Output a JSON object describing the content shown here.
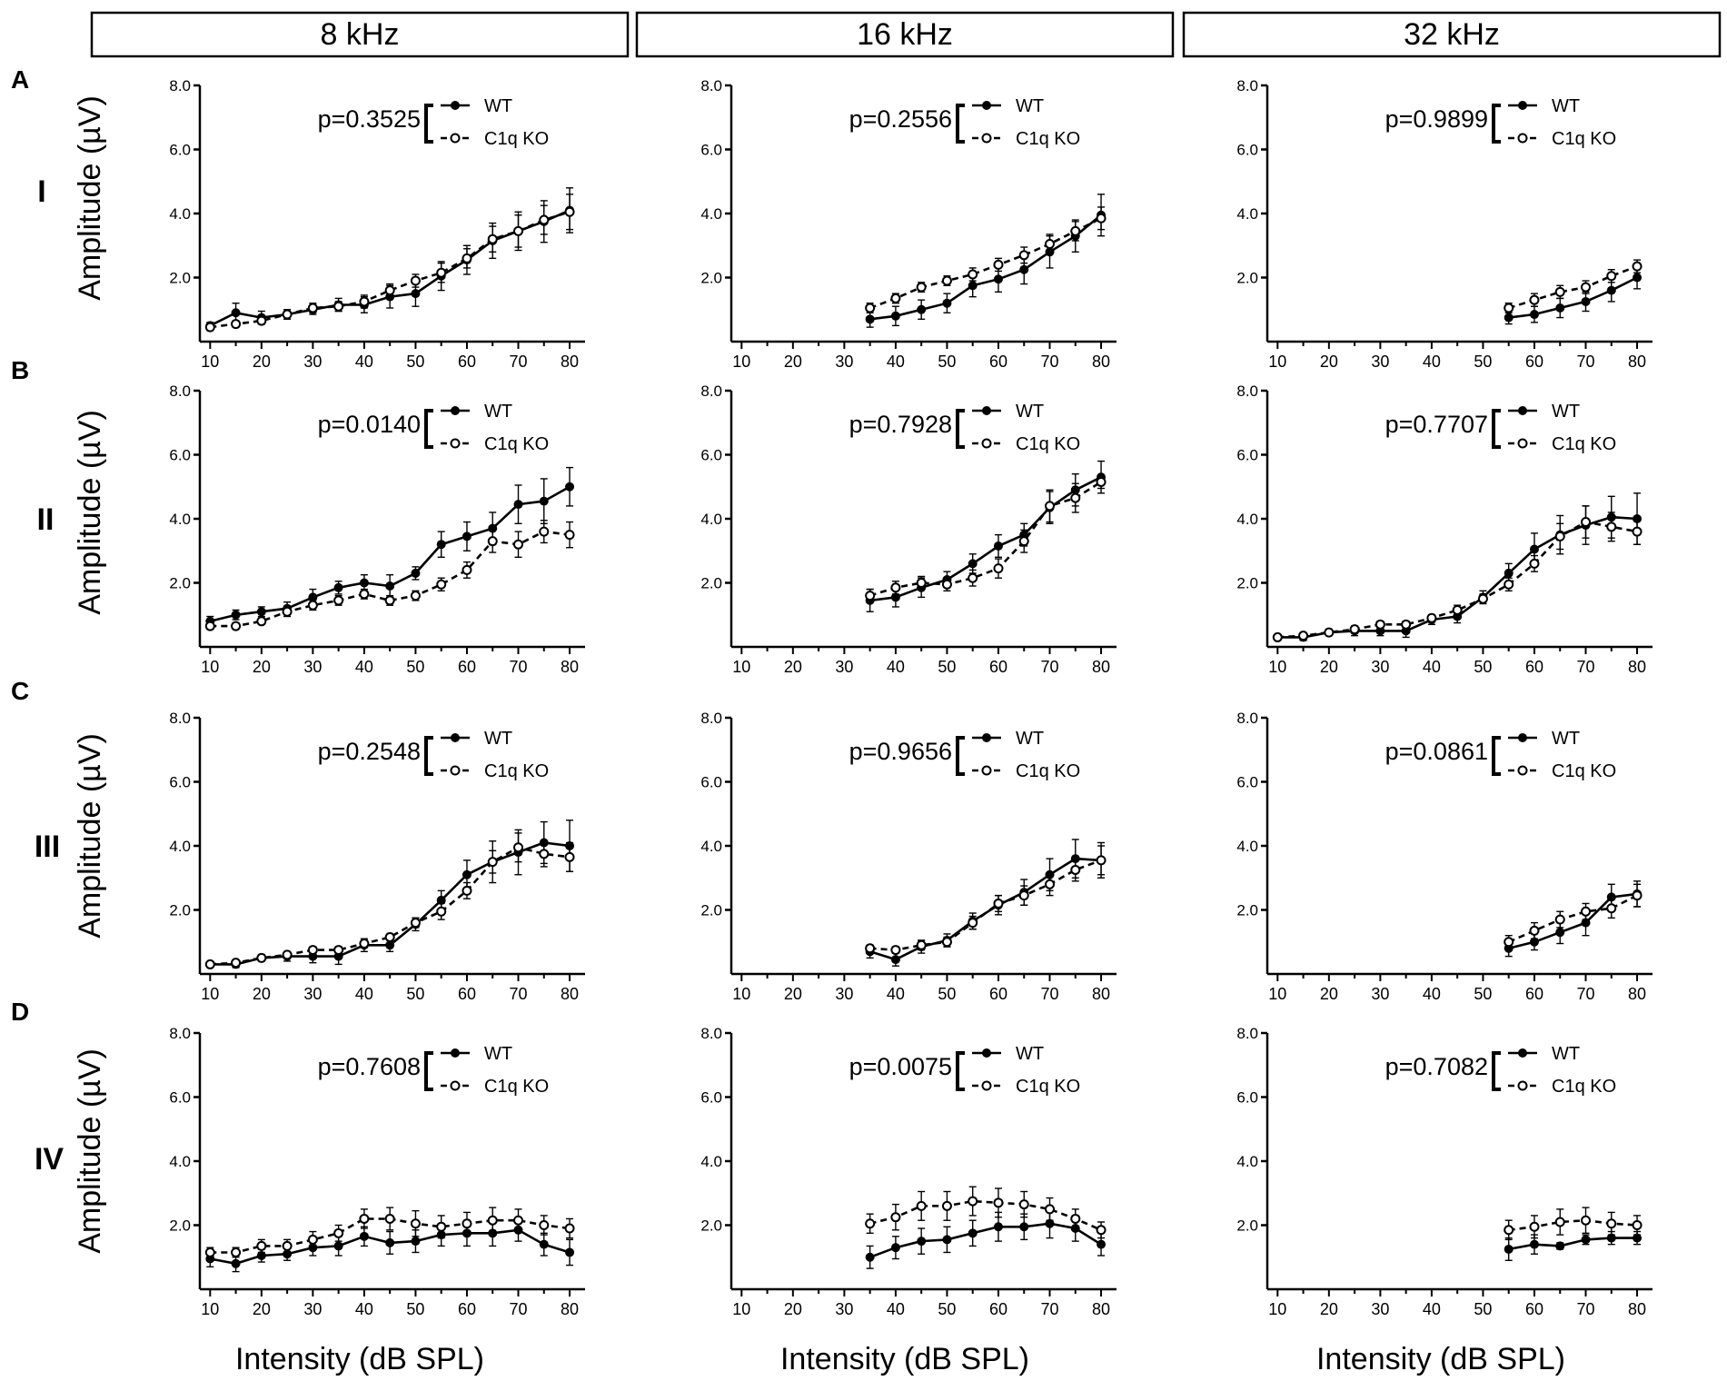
{
  "frequency_headers": [
    "8 kHz",
    "16 kHz",
    "32 kHz"
  ],
  "panel_letters": [
    "A",
    "B",
    "C",
    "D"
  ],
  "wave_labels": [
    "I",
    "II",
    "III",
    "IV"
  ],
  "y_axis_label": "Amplitude (µV)",
  "x_axis_label": "Intensity (dB SPL)",
  "legend": {
    "wt": "WT",
    "ko": "C1q KO"
  },
  "colors": {
    "line": "#000000",
    "open_marker_fill": "#ffffff"
  },
  "chart_data": [
    {
      "type": "line",
      "panel": "A",
      "wave": "I",
      "frequency": "8 kHz",
      "p_value": "p=0.3525",
      "xlim": [
        8,
        83
      ],
      "ylim": [
        0,
        8
      ],
      "xticks": [
        10,
        20,
        30,
        40,
        50,
        60,
        70,
        80
      ],
      "yticks": [
        "2.0",
        "4.0",
        "6.0",
        "8.0"
      ],
      "x": [
        10,
        15,
        20,
        25,
        30,
        35,
        40,
        45,
        50,
        55,
        60,
        65,
        70,
        75,
        80
      ],
      "series": [
        {
          "name": "WT",
          "values": [
            0.5,
            0.9,
            0.75,
            0.85,
            1.0,
            1.15,
            1.15,
            1.4,
            1.5,
            2.05,
            2.55,
            3.15,
            3.45,
            3.75,
            4.1
          ],
          "errors": [
            0.1,
            0.3,
            0.2,
            0.15,
            0.15,
            0.2,
            0.25,
            0.35,
            0.4,
            0.45,
            0.45,
            0.55,
            0.6,
            0.65,
            0.7
          ]
        },
        {
          "name": "C1q KO",
          "values": [
            0.45,
            0.55,
            0.65,
            0.85,
            1.05,
            1.1,
            1.25,
            1.6,
            1.9,
            2.15,
            2.6,
            3.2,
            3.45,
            3.8,
            4.05
          ],
          "errors": [
            0.1,
            0.1,
            0.1,
            0.1,
            0.15,
            0.15,
            0.2,
            0.2,
            0.2,
            0.3,
            0.3,
            0.4,
            0.5,
            0.45,
            0.55
          ]
        }
      ]
    },
    {
      "type": "line",
      "panel": "A",
      "wave": "I",
      "frequency": "16 kHz",
      "p_value": "p=0.2556",
      "xlim": [
        8,
        83
      ],
      "ylim": [
        0,
        8
      ],
      "xticks": [
        10,
        20,
        30,
        40,
        50,
        60,
        70,
        80
      ],
      "yticks": [
        "2.0",
        "4.0",
        "6.0",
        "8.0"
      ],
      "x": [
        35,
        40,
        45,
        50,
        55,
        60,
        65,
        70,
        75,
        80
      ],
      "series": [
        {
          "name": "WT",
          "values": [
            0.7,
            0.8,
            1.0,
            1.2,
            1.75,
            1.95,
            2.25,
            2.8,
            3.3,
            3.95
          ],
          "errors": [
            0.25,
            0.3,
            0.3,
            0.3,
            0.35,
            0.4,
            0.45,
            0.5,
            0.5,
            0.65
          ]
        },
        {
          "name": "C1q KO",
          "values": [
            1.05,
            1.35,
            1.7,
            1.9,
            2.1,
            2.4,
            2.7,
            3.05,
            3.45,
            3.85
          ],
          "errors": [
            0.15,
            0.15,
            0.15,
            0.15,
            0.2,
            0.2,
            0.25,
            0.3,
            0.3,
            0.35
          ]
        }
      ]
    },
    {
      "type": "line",
      "panel": "A",
      "wave": "I",
      "frequency": "32 kHz",
      "p_value": "p=0.9899",
      "xlim": [
        8,
        83
      ],
      "ylim": [
        0,
        8
      ],
      "xticks": [
        10,
        20,
        30,
        40,
        50,
        60,
        70,
        80
      ],
      "yticks": [
        "2.0",
        "4.0",
        "6.0",
        "8.0"
      ],
      "x": [
        55,
        60,
        65,
        70,
        75,
        80
      ],
      "series": [
        {
          "name": "WT",
          "values": [
            0.75,
            0.85,
            1.05,
            1.25,
            1.6,
            2.0
          ],
          "errors": [
            0.2,
            0.25,
            0.3,
            0.3,
            0.35,
            0.35
          ]
        },
        {
          "name": "C1q KO",
          "values": [
            1.05,
            1.3,
            1.55,
            1.7,
            2.05,
            2.35
          ],
          "errors": [
            0.15,
            0.2,
            0.2,
            0.2,
            0.2,
            0.2
          ]
        }
      ]
    },
    {
      "type": "line",
      "panel": "B",
      "wave": "II",
      "frequency": "8 kHz",
      "p_value": "p=0.0140",
      "xlim": [
        8,
        83
      ],
      "ylim": [
        0,
        8
      ],
      "xticks": [
        10,
        20,
        30,
        40,
        50,
        60,
        70,
        80
      ],
      "yticks": [
        "2.0",
        "4.0",
        "6.0",
        "8.0"
      ],
      "x": [
        10,
        15,
        20,
        25,
        30,
        35,
        40,
        45,
        50,
        55,
        60,
        65,
        70,
        75,
        80
      ],
      "series": [
        {
          "name": "WT",
          "values": [
            0.8,
            1.0,
            1.1,
            1.2,
            1.55,
            1.85,
            2.0,
            1.9,
            2.3,
            3.2,
            3.45,
            3.7,
            4.45,
            4.55,
            5.0
          ],
          "errors": [
            0.15,
            0.15,
            0.15,
            0.2,
            0.25,
            0.2,
            0.25,
            0.35,
            0.2,
            0.4,
            0.45,
            0.5,
            0.6,
            0.7,
            0.6
          ]
        },
        {
          "name": "C1q KO",
          "values": [
            0.65,
            0.65,
            0.8,
            1.1,
            1.3,
            1.45,
            1.65,
            1.45,
            1.6,
            1.95,
            2.4,
            3.3,
            3.2,
            3.6,
            3.5
          ],
          "errors": [
            0.1,
            0.1,
            0.1,
            0.15,
            0.15,
            0.15,
            0.15,
            0.15,
            0.15,
            0.2,
            0.25,
            0.35,
            0.4,
            0.35,
            0.4
          ]
        }
      ]
    },
    {
      "type": "line",
      "panel": "B",
      "wave": "II",
      "frequency": "16 kHz",
      "p_value": "p=0.7928",
      "xlim": [
        8,
        83
      ],
      "ylim": [
        0,
        8
      ],
      "xticks": [
        10,
        20,
        30,
        40,
        50,
        60,
        70,
        80
      ],
      "yticks": [
        "2.0",
        "4.0",
        "6.0",
        "8.0"
      ],
      "x": [
        35,
        40,
        45,
        50,
        55,
        60,
        65,
        70,
        75,
        80
      ],
      "series": [
        {
          "name": "WT",
          "values": [
            1.45,
            1.55,
            1.85,
            2.1,
            2.6,
            3.15,
            3.5,
            4.35,
            4.9,
            5.3
          ],
          "errors": [
            0.35,
            0.3,
            0.3,
            0.25,
            0.3,
            0.35,
            0.35,
            0.5,
            0.5,
            0.5
          ]
        },
        {
          "name": "C1q KO",
          "values": [
            1.6,
            1.85,
            2.0,
            1.95,
            2.15,
            2.45,
            3.3,
            4.4,
            4.65,
            5.15
          ],
          "errors": [
            0.2,
            0.2,
            0.2,
            0.2,
            0.25,
            0.3,
            0.35,
            0.5,
            0.45,
            0.2
          ]
        }
      ]
    },
    {
      "type": "line",
      "panel": "B",
      "wave": "II",
      "frequency": "32 kHz",
      "p_value": "p=0.7707",
      "xlim": [
        8,
        83
      ],
      "ylim": [
        0,
        8
      ],
      "xticks": [
        10,
        20,
        30,
        40,
        50,
        60,
        70,
        80
      ],
      "yticks": [
        "2.0",
        "4.0",
        "6.0",
        "8.0"
      ],
      "x": [
        10,
        15,
        20,
        25,
        30,
        35,
        40,
        45,
        50,
        55,
        60,
        65,
        70,
        75,
        80
      ],
      "series": [
        {
          "name": "WT",
          "values": [
            0.3,
            0.3,
            0.45,
            0.5,
            0.5,
            0.5,
            0.85,
            0.95,
            1.55,
            2.3,
            3.05,
            3.5,
            3.8,
            4.05,
            4.0
          ],
          "errors": [
            0.05,
            0.1,
            0.1,
            0.15,
            0.15,
            0.2,
            0.15,
            0.2,
            0.2,
            0.3,
            0.5,
            0.6,
            0.6,
            0.65,
            0.8
          ]
        },
        {
          "name": "C1q KO",
          "values": [
            0.3,
            0.35,
            0.45,
            0.55,
            0.7,
            0.7,
            0.9,
            1.15,
            1.5,
            1.95,
            2.6,
            3.45,
            3.9,
            3.75,
            3.6
          ],
          "errors": [
            0.05,
            0.05,
            0.05,
            0.1,
            0.1,
            0.1,
            0.1,
            0.15,
            0.15,
            0.2,
            0.25,
            0.4,
            0.5,
            0.45,
            0.4
          ]
        }
      ]
    },
    {
      "type": "line",
      "panel": "C",
      "wave": "III",
      "frequency": "8 kHz",
      "p_value": "p=0.2548",
      "xlim": [
        8,
        83
      ],
      "ylim": [
        0,
        8
      ],
      "xticks": [
        10,
        20,
        30,
        40,
        50,
        60,
        70,
        80
      ],
      "yticks": [
        "2.0",
        "4.0",
        "6.0",
        "8.0"
      ],
      "x": [
        10,
        15,
        20,
        25,
        30,
        35,
        40,
        45,
        50,
        55,
        60,
        65,
        70,
        75,
        80
      ],
      "series": [
        {
          "name": "WT",
          "values": [
            0.3,
            0.3,
            0.5,
            0.55,
            0.55,
            0.55,
            0.9,
            0.9,
            1.55,
            2.3,
            3.1,
            3.5,
            3.8,
            4.1,
            4.0
          ],
          "errors": [
            0.05,
            0.1,
            0.1,
            0.15,
            0.2,
            0.25,
            0.2,
            0.2,
            0.2,
            0.3,
            0.45,
            0.65,
            0.7,
            0.65,
            0.8
          ]
        },
        {
          "name": "C1q KO",
          "values": [
            0.3,
            0.35,
            0.5,
            0.6,
            0.75,
            0.75,
            0.95,
            1.15,
            1.6,
            1.95,
            2.6,
            3.5,
            3.95,
            3.75,
            3.65
          ],
          "errors": [
            0.05,
            0.05,
            0.05,
            0.1,
            0.1,
            0.1,
            0.1,
            0.1,
            0.15,
            0.25,
            0.25,
            0.35,
            0.45,
            0.4,
            0.45
          ]
        }
      ]
    },
    {
      "type": "line",
      "panel": "C",
      "wave": "III",
      "frequency": "16 kHz",
      "p_value": "p=0.9656",
      "xlim": [
        8,
        83
      ],
      "ylim": [
        0,
        8
      ],
      "xticks": [
        10,
        20,
        30,
        40,
        50,
        60,
        70,
        80
      ],
      "yticks": [
        "2.0",
        "4.0",
        "6.0",
        "8.0"
      ],
      "x": [
        35,
        40,
        45,
        50,
        55,
        60,
        65,
        70,
        75,
        80
      ],
      "series": [
        {
          "name": "WT",
          "values": [
            0.7,
            0.45,
            0.85,
            1.05,
            1.65,
            2.15,
            2.55,
            3.1,
            3.6,
            3.55
          ],
          "errors": [
            0.2,
            0.2,
            0.2,
            0.2,
            0.25,
            0.3,
            0.4,
            0.5,
            0.6,
            0.55
          ]
        },
        {
          "name": "C1q KO",
          "values": [
            0.8,
            0.75,
            0.9,
            1.0,
            1.6,
            2.2,
            2.45,
            2.8,
            3.25,
            3.55
          ],
          "errors": [
            0.1,
            0.1,
            0.15,
            0.15,
            0.2,
            0.25,
            0.3,
            0.35,
            0.35,
            0.45
          ]
        }
      ]
    },
    {
      "type": "line",
      "panel": "C",
      "wave": "III",
      "frequency": "32 kHz",
      "p_value": "p=0.0861",
      "xlim": [
        8,
        83
      ],
      "ylim": [
        0,
        8
      ],
      "xticks": [
        10,
        20,
        30,
        40,
        50,
        60,
        70,
        80
      ],
      "yticks": [
        "2.0",
        "4.0",
        "6.0",
        "8.0"
      ],
      "x": [
        55,
        60,
        65,
        70,
        75,
        80
      ],
      "series": [
        {
          "name": "WT",
          "values": [
            0.8,
            1.0,
            1.3,
            1.6,
            2.4,
            2.5
          ],
          "errors": [
            0.25,
            0.25,
            0.35,
            0.4,
            0.4,
            0.4
          ]
        },
        {
          "name": "C1q KO",
          "values": [
            1.0,
            1.35,
            1.7,
            1.95,
            2.05,
            2.45
          ],
          "errors": [
            0.2,
            0.25,
            0.25,
            0.25,
            0.3,
            0.35
          ]
        }
      ]
    },
    {
      "type": "line",
      "panel": "D",
      "wave": "IV",
      "frequency": "8 kHz",
      "p_value": "p=0.7608",
      "xlim": [
        8,
        83
      ],
      "ylim": [
        0,
        8
      ],
      "xticks": [
        10,
        20,
        30,
        40,
        50,
        60,
        70,
        80
      ],
      "yticks": [
        "2.0",
        "4.0",
        "6.0",
        "8.0"
      ],
      "x": [
        10,
        15,
        20,
        25,
        30,
        35,
        40,
        45,
        50,
        55,
        60,
        65,
        70,
        75,
        80
      ],
      "series": [
        {
          "name": "WT",
          "values": [
            0.95,
            0.8,
            1.05,
            1.1,
            1.3,
            1.35,
            1.65,
            1.45,
            1.5,
            1.7,
            1.75,
            1.75,
            1.85,
            1.4,
            1.15
          ],
          "errors": [
            0.25,
            0.25,
            0.2,
            0.2,
            0.25,
            0.3,
            0.3,
            0.35,
            0.35,
            0.35,
            0.4,
            0.4,
            0.35,
            0.35,
            0.4
          ]
        },
        {
          "name": "C1q KO",
          "values": [
            1.15,
            1.15,
            1.35,
            1.35,
            1.55,
            1.75,
            2.2,
            2.2,
            2.05,
            1.95,
            2.05,
            2.15,
            2.15,
            2.0,
            1.9
          ],
          "errors": [
            0.15,
            0.15,
            0.2,
            0.2,
            0.25,
            0.25,
            0.3,
            0.35,
            0.4,
            0.35,
            0.35,
            0.4,
            0.35,
            0.3,
            0.3
          ]
        }
      ]
    },
    {
      "type": "line",
      "panel": "D",
      "wave": "IV",
      "frequency": "16 kHz",
      "p_value": "p=0.0075",
      "xlim": [
        8,
        83
      ],
      "ylim": [
        0,
        8
      ],
      "xticks": [
        10,
        20,
        30,
        40,
        50,
        60,
        70,
        80
      ],
      "yticks": [
        "2.0",
        "4.0",
        "6.0",
        "8.0"
      ],
      "x": [
        35,
        40,
        45,
        50,
        55,
        60,
        65,
        70,
        75,
        80
      ],
      "series": [
        {
          "name": "WT",
          "values": [
            1.0,
            1.3,
            1.5,
            1.55,
            1.75,
            1.95,
            1.95,
            2.05,
            1.9,
            1.4
          ],
          "errors": [
            0.35,
            0.35,
            0.4,
            0.4,
            0.4,
            0.45,
            0.4,
            0.45,
            0.4,
            0.35
          ]
        },
        {
          "name": "C1q KO",
          "values": [
            2.05,
            2.25,
            2.6,
            2.6,
            2.75,
            2.7,
            2.65,
            2.5,
            2.2,
            1.85
          ],
          "errors": [
            0.3,
            0.4,
            0.45,
            0.45,
            0.45,
            0.45,
            0.4,
            0.35,
            0.3,
            0.25
          ]
        }
      ]
    },
    {
      "type": "line",
      "panel": "D",
      "wave": "IV",
      "frequency": "32 kHz",
      "p_value": "p=0.7082",
      "xlim": [
        8,
        83
      ],
      "ylim": [
        0,
        8
      ],
      "xticks": [
        10,
        20,
        30,
        40,
        50,
        60,
        70,
        80
      ],
      "yticks": [
        "2.0",
        "4.0",
        "6.0",
        "8.0"
      ],
      "x": [
        55,
        60,
        65,
        70,
        75,
        80
      ],
      "series": [
        {
          "name": "WT",
          "values": [
            1.25,
            1.4,
            1.35,
            1.55,
            1.6,
            1.6
          ],
          "errors": [
            0.35,
            0.3,
            0.1,
            0.15,
            0.2,
            0.2
          ]
        },
        {
          "name": "C1q KO",
          "values": [
            1.85,
            1.95,
            2.1,
            2.15,
            2.05,
            2.0
          ],
          "errors": [
            0.3,
            0.35,
            0.4,
            0.4,
            0.35,
            0.3
          ]
        }
      ]
    }
  ]
}
